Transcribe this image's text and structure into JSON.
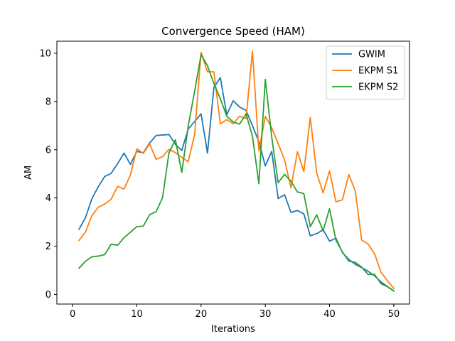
{
  "chart_data": {
    "type": "line",
    "title": "Convergence Speed (HAM)",
    "xlabel": "Iterations",
    "ylabel": "AM",
    "xlim": [
      -2.45,
      52.45
    ],
    "ylim": [
      -0.4,
      10.5
    ],
    "xticks": [
      0,
      10,
      20,
      30,
      40,
      50
    ],
    "yticks": [
      0,
      2,
      4,
      6,
      8,
      10
    ],
    "grid": false,
    "legend_position": "top-right",
    "x": [
      1,
      2,
      3,
      4,
      5,
      6,
      7,
      8,
      9,
      10,
      11,
      12,
      13,
      14,
      15,
      16,
      17,
      18,
      19,
      20,
      21,
      22,
      23,
      24,
      25,
      26,
      27,
      28,
      29,
      30,
      31,
      32,
      33,
      34,
      35,
      36,
      37,
      38,
      39,
      40,
      41,
      42,
      43,
      44,
      45,
      46,
      47,
      48,
      49,
      50
    ],
    "series": [
      {
        "name": "GWIM",
        "color": "#1f77b4",
        "values": [
          2.7,
          3.18,
          3.97,
          4.47,
          4.89,
          5.02,
          5.42,
          5.86,
          5.39,
          5.93,
          5.87,
          6.28,
          6.59,
          6.61,
          6.63,
          6.22,
          5.97,
          6.86,
          7.17,
          7.49,
          5.86,
          8.59,
          8.99,
          7.45,
          8.03,
          7.77,
          7.63,
          7.0,
          6.33,
          5.33,
          5.93,
          3.98,
          4.13,
          3.4,
          3.48,
          3.34,
          2.43,
          2.52,
          2.68,
          2.21,
          2.33,
          1.74,
          1.45,
          1.25,
          1.11,
          0.96,
          0.77,
          0.52,
          0.33,
          0.15
        ]
      },
      {
        "name": "EKPM S1",
        "color": "#ff7f0e",
        "values": [
          2.24,
          2.58,
          3.27,
          3.62,
          3.75,
          3.95,
          4.48,
          4.37,
          4.95,
          6.04,
          5.85,
          6.24,
          5.6,
          5.71,
          6.02,
          5.88,
          5.68,
          5.5,
          6.64,
          10.04,
          9.23,
          9.23,
          7.07,
          7.25,
          7.08,
          7.39,
          7.29,
          10.09,
          5.95,
          7.38,
          6.91,
          6.25,
          5.58,
          4.42,
          5.92,
          5.09,
          7.34,
          5.04,
          4.21,
          5.12,
          3.84,
          3.92,
          4.97,
          4.3,
          2.26,
          2.09,
          1.69,
          0.93,
          0.57,
          0.25
        ]
      },
      {
        "name": "EKPM S2",
        "color": "#2ca02c",
        "values": [
          1.09,
          1.37,
          1.56,
          1.59,
          1.65,
          2.08,
          2.04,
          2.35,
          2.58,
          2.81,
          2.83,
          3.31,
          3.43,
          4.01,
          5.87,
          6.41,
          5.06,
          6.98,
          8.43,
          9.94,
          9.48,
          8.74,
          8.11,
          7.39,
          7.15,
          7.06,
          7.49,
          6.56,
          4.59,
          8.92,
          6.53,
          4.63,
          4.98,
          4.69,
          4.25,
          4.18,
          2.81,
          3.3,
          2.64,
          3.55,
          2.25,
          1.76,
          1.38,
          1.33,
          1.13,
          0.83,
          0.83,
          0.45,
          0.32,
          0.14
        ]
      }
    ]
  }
}
